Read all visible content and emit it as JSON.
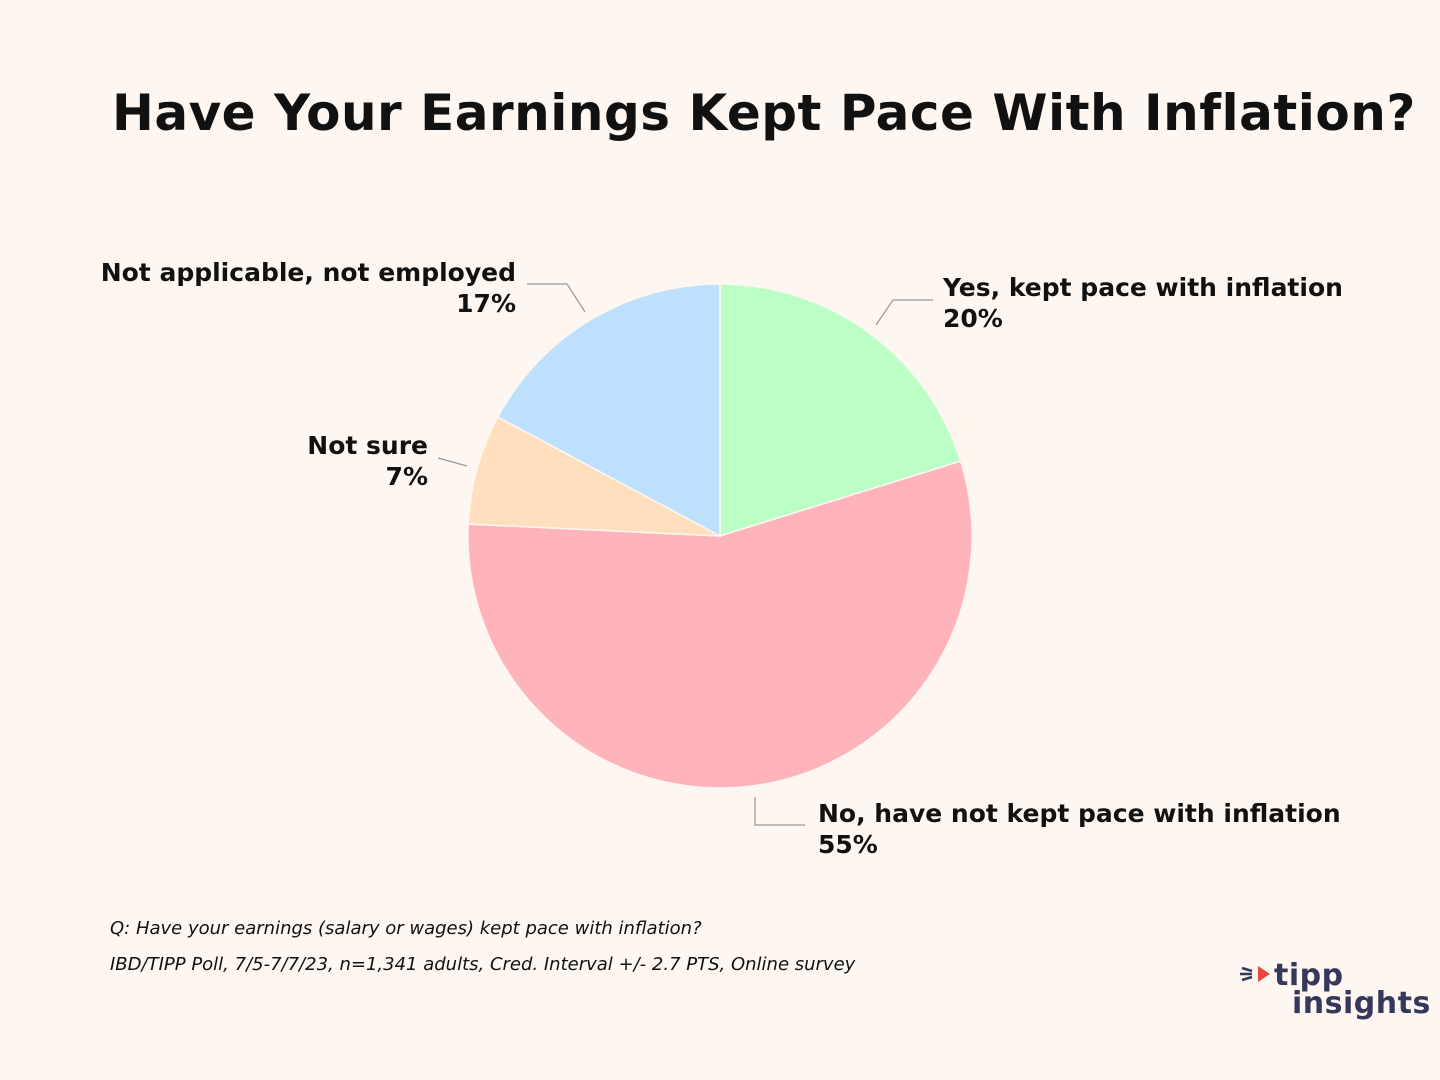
{
  "title": "Have Your Earnings Kept Pace With Inflation?",
  "chart_data": {
    "type": "pie",
    "title": "Have Your Earnings Kept Pace With Inflation?",
    "slices": [
      {
        "label": "Yes, kept pace with inflation",
        "value": 20,
        "value_label": "20%",
        "color": "#bbffc6"
      },
      {
        "label": "No, have not kept pace with inflation",
        "value": 55,
        "value_label": "55%",
        "color": "#ffb3bb"
      },
      {
        "label": "Not sure",
        "value": 7,
        "value_label": "7%",
        "color": "#ffdfbd"
      },
      {
        "label": "Not applicable, not employed",
        "value": 17,
        "value_label": "17%",
        "color": "#bde0ff"
      }
    ],
    "legend": "none",
    "labels": "outside with leader lines"
  },
  "footnote": {
    "question": "Q: Have your earnings (salary or wages) kept pace with inflation?",
    "source": "IBD/TIPP Poll, 7/5-7/7/23, n=1,341 adults, Cred. Interval +/- 2.7 PTS, Online survey"
  },
  "logo": {
    "line1": "tipp",
    "line2": "insights",
    "text_color": "#35385a",
    "accent_color": "#e8473b"
  }
}
